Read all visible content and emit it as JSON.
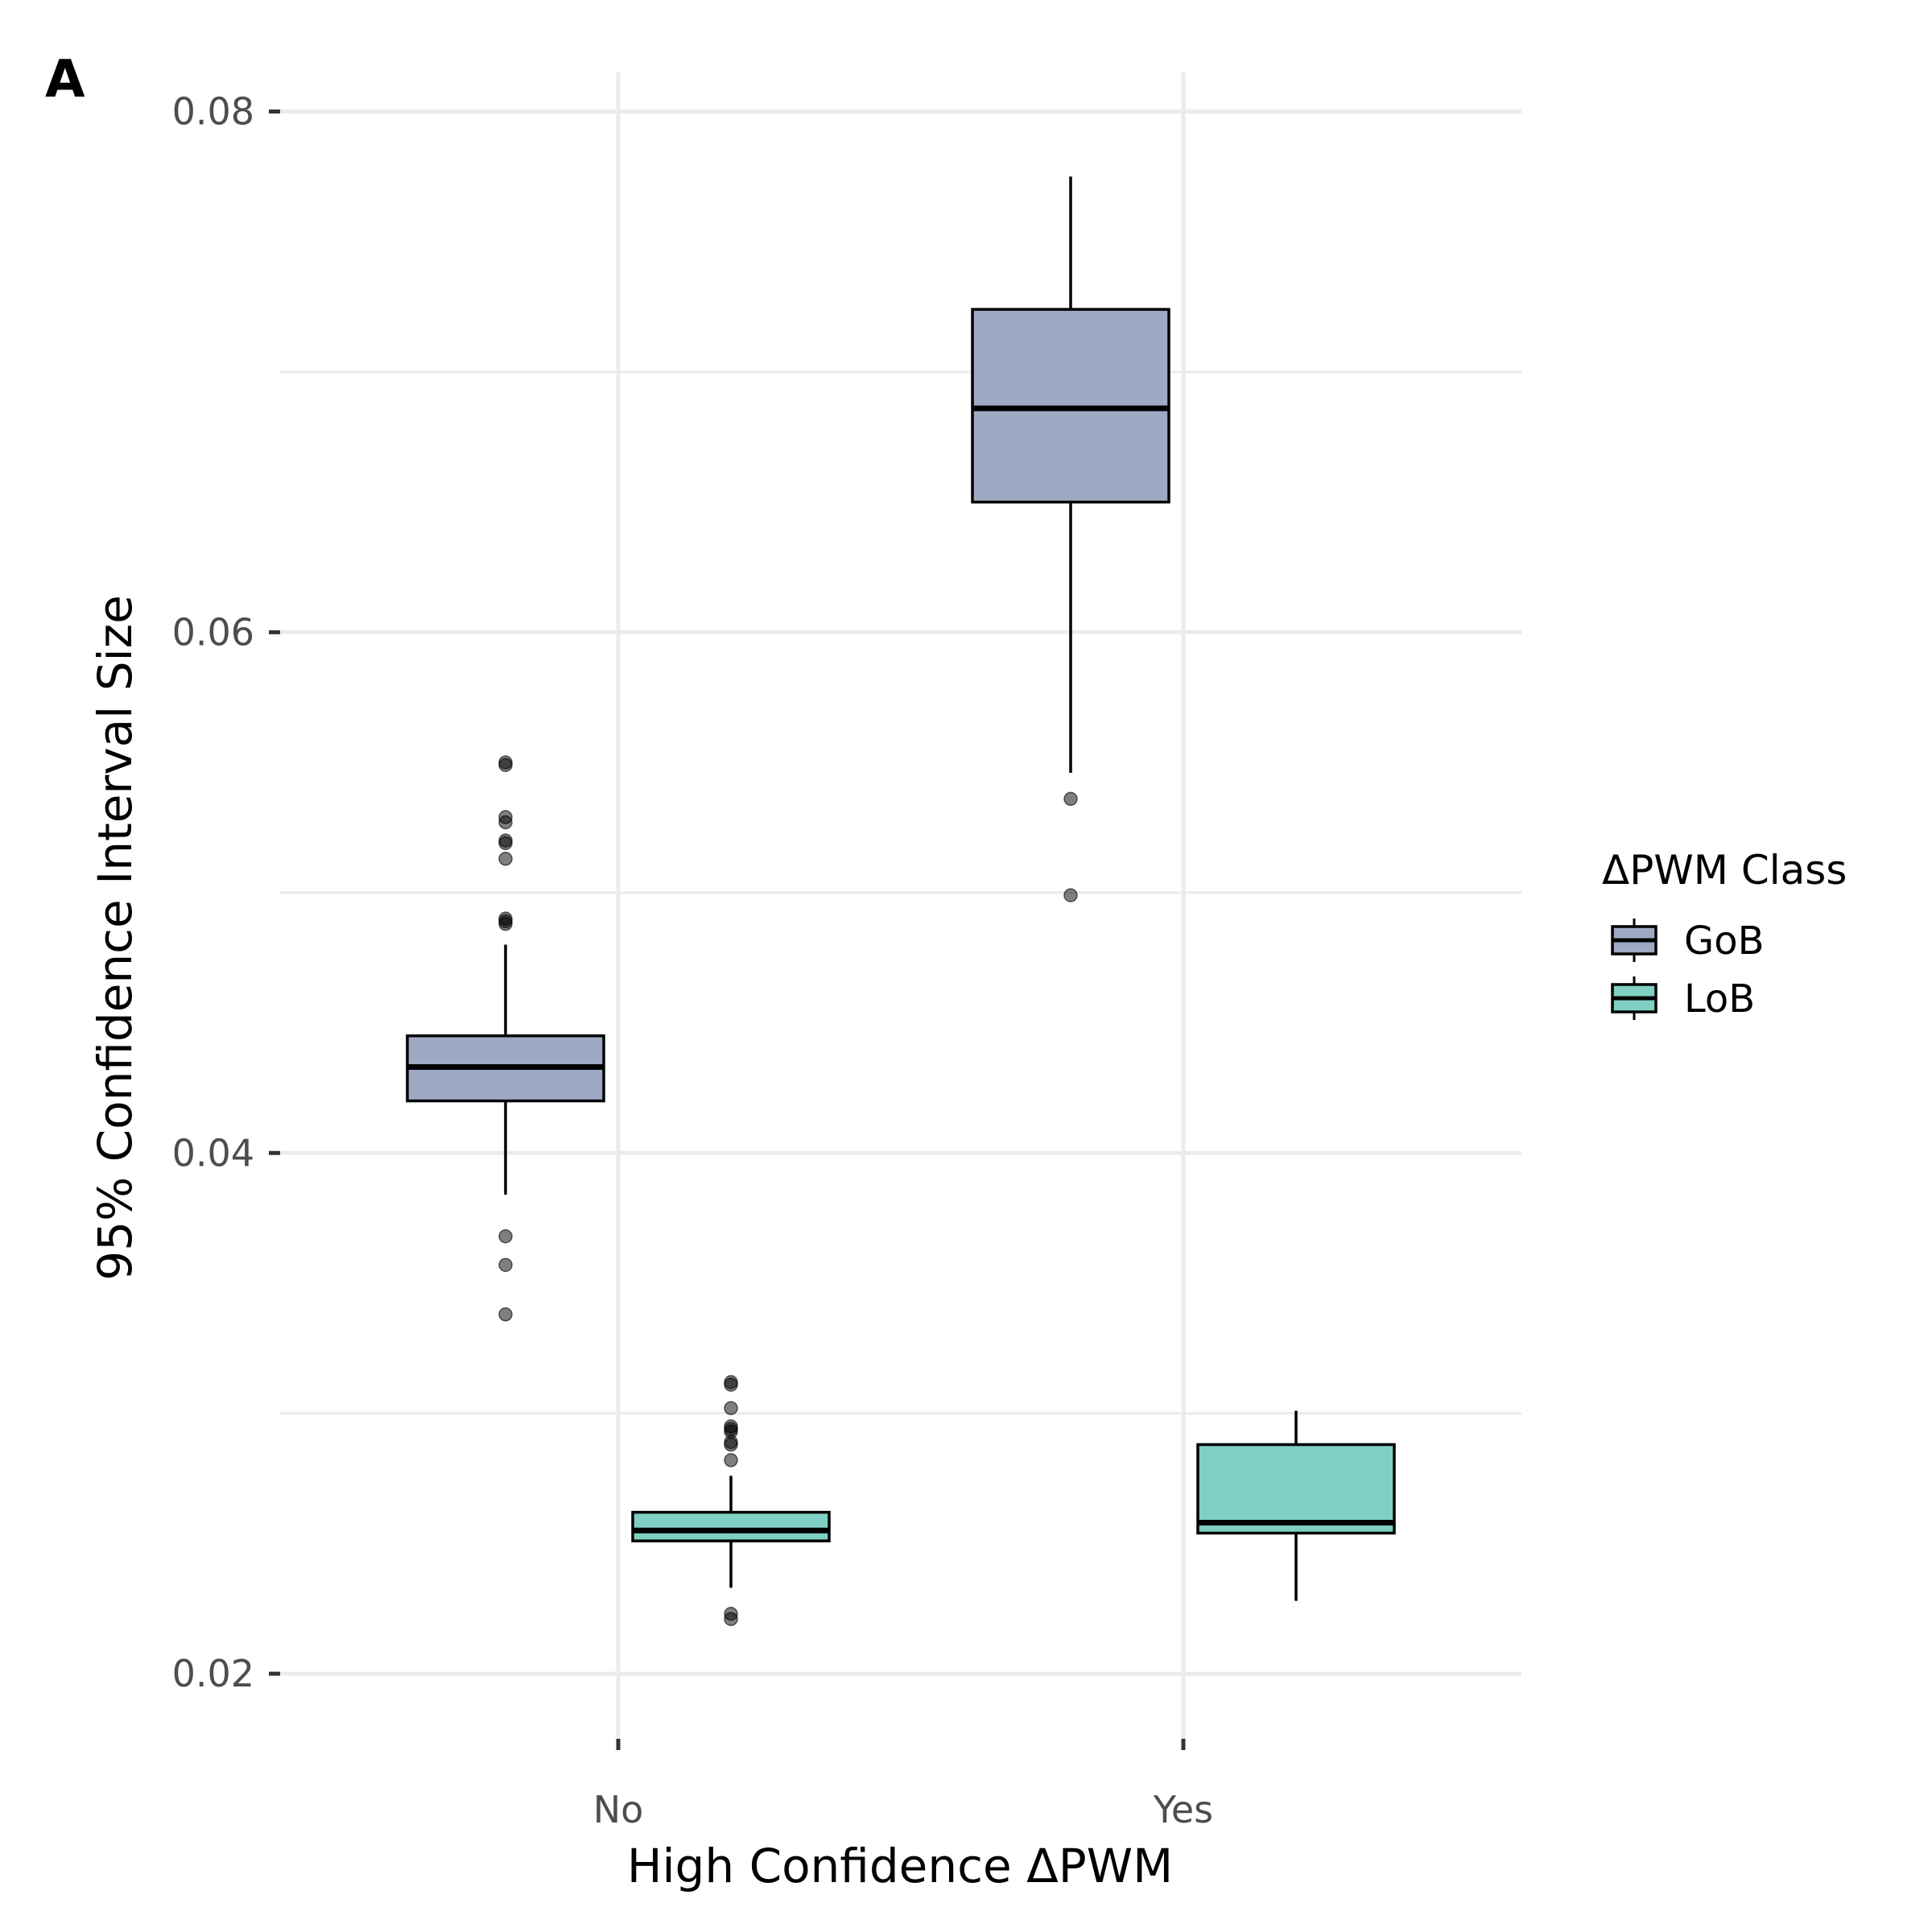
{
  "panel_label": "A",
  "chart_data": {
    "type": "boxplot",
    "xlabel": "High Confidence ΔPWM",
    "ylabel": "95% Confidence Interval Size",
    "categories": [
      "No",
      "Yes"
    ],
    "ylim": [
      0.0175,
      0.0815
    ],
    "yticks": [
      0.02,
      0.04,
      0.06,
      0.08
    ],
    "ytick_labels": [
      "0.02",
      "0.04",
      "0.06",
      "0.08"
    ],
    "minor_gridlines": [
      0.03,
      0.05,
      0.07
    ],
    "grid": true,
    "legend": {
      "title": "ΔPWM Class",
      "position": "right",
      "entries": [
        "GoB",
        "LoB"
      ]
    },
    "series": [
      {
        "name": "GoB",
        "color": "#9EA9C3",
        "boxes": [
          {
            "category": "No",
            "whisker_low": 0.0384,
            "q1": 0.042,
            "median": 0.0433,
            "q3": 0.0445,
            "whisker_high": 0.048,
            "outliers": [
              0.055,
              0.0549,
              0.0529,
              0.0527,
              0.052,
              0.0519,
              0.0513,
              0.049,
              0.0489,
              0.0488,
              0.0368,
              0.0357,
              0.0338
            ]
          },
          {
            "category": "Yes",
            "whisker_low": 0.0546,
            "q1": 0.065,
            "median": 0.0686,
            "q3": 0.0724,
            "whisker_high": 0.0775,
            "outliers": [
              0.0536,
              0.0499
            ]
          }
        ]
      },
      {
        "name": "LoB",
        "color": "#7FD0C2",
        "boxes": [
          {
            "category": "No",
            "whisker_low": 0.0233,
            "q1": 0.0251,
            "median": 0.0255,
            "q3": 0.0262,
            "whisker_high": 0.0276,
            "outliers": [
              0.0312,
              0.0311,
              0.0302,
              0.0295,
              0.0294,
              0.0293,
              0.0289,
              0.0288,
              0.0282,
              0.0223,
              0.0221
            ]
          },
          {
            "category": "Yes",
            "whisker_low": 0.0228,
            "q1": 0.0254,
            "median": 0.0258,
            "q3": 0.0288,
            "whisker_high": 0.0301,
            "outliers": []
          }
        ]
      }
    ]
  }
}
